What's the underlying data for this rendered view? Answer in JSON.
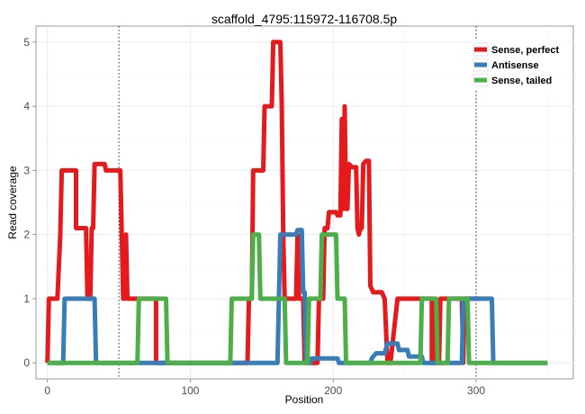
{
  "chart_data": {
    "type": "line",
    "title": "scaffold_4795:115972-116708.5p",
    "xlabel": "Position",
    "ylabel": "Read coverage",
    "xlim": [
      -8,
      368
    ],
    "ylim": [
      -0.25,
      5.25
    ],
    "xticks": [
      0,
      100,
      200,
      300
    ],
    "yticks": [
      0,
      1,
      2,
      3,
      4,
      5
    ],
    "grid": true,
    "legend_position": "top-right",
    "vlines": [
      50,
      300
    ],
    "series": [
      {
        "name": "Sense, perfect",
        "color": "#E41A1C",
        "points": [
          [
            0,
            0
          ],
          [
            1,
            1
          ],
          [
            7,
            1
          ],
          [
            9,
            2
          ],
          [
            10,
            3
          ],
          [
            20,
            3
          ],
          [
            20,
            2.1
          ],
          [
            27,
            2.1
          ],
          [
            28,
            1
          ],
          [
            30,
            1
          ],
          [
            31,
            2.1
          ],
          [
            32,
            2.1
          ],
          [
            33,
            3.1
          ],
          [
            40,
            3.1
          ],
          [
            41,
            3
          ],
          [
            51,
            3
          ],
          [
            52,
            2
          ],
          [
            53,
            1
          ],
          [
            54,
            1
          ],
          [
            55,
            2
          ],
          [
            56,
            1
          ],
          [
            68,
            1
          ],
          [
            70,
            1
          ],
          [
            76,
            1
          ],
          [
            76,
            0
          ],
          [
            140,
            0
          ],
          [
            141,
            1
          ],
          [
            143,
            1
          ],
          [
            144,
            3
          ],
          [
            151,
            3
          ],
          [
            152,
            4
          ],
          [
            157,
            4
          ],
          [
            158,
            5
          ],
          [
            163,
            5
          ],
          [
            164,
            4
          ],
          [
            165,
            2
          ],
          [
            166,
            1
          ],
          [
            174,
            1
          ],
          [
            175,
            2
          ],
          [
            176,
            1
          ],
          [
            179,
            1
          ],
          [
            180,
            0
          ],
          [
            189,
            0
          ],
          [
            190,
            1
          ],
          [
            193,
            1
          ],
          [
            194,
            2.1
          ],
          [
            196,
            2.1
          ],
          [
            197,
            2.35
          ],
          [
            202,
            2.35
          ],
          [
            203,
            2.3
          ],
          [
            205,
            2.3
          ],
          [
            206,
            3.8
          ],
          [
            207,
            2.4
          ],
          [
            208,
            4
          ],
          [
            209,
            2.4
          ],
          [
            210,
            2.4
          ],
          [
            211,
            3.1
          ],
          [
            213,
            3.05
          ],
          [
            216,
            3.05
          ],
          [
            217,
            2.1
          ],
          [
            218,
            2
          ],
          [
            219,
            2.1
          ],
          [
            220,
            2.1
          ],
          [
            221,
            3.1
          ],
          [
            223,
            3.15
          ],
          [
            225,
            3.15
          ],
          [
            226,
            1.2
          ],
          [
            228,
            1.1
          ],
          [
            230,
            1.1
          ],
          [
            232,
            1.1
          ],
          [
            234,
            1.1
          ],
          [
            236,
            1
          ],
          [
            238,
            0
          ],
          [
            240,
            0
          ],
          [
            245,
            1
          ],
          [
            258,
            1
          ],
          [
            260,
            1
          ],
          [
            262,
            1
          ],
          [
            269,
            1
          ],
          [
            269,
            0
          ],
          [
            270,
            1
          ],
          [
            271,
            0
          ],
          [
            274,
            0
          ],
          [
            275,
            1
          ],
          [
            290,
            1
          ],
          [
            291,
            0
          ],
          [
            292,
            1
          ],
          [
            300,
            1
          ],
          [
            302,
            1
          ]
        ]
      },
      {
        "name": "Antisense",
        "color": "#377EB8",
        "points": [
          [
            0,
            0
          ],
          [
            11,
            0
          ],
          [
            12,
            1
          ],
          [
            33,
            1
          ],
          [
            34,
            0
          ],
          [
            161,
            0
          ],
          [
            162,
            1
          ],
          [
            163,
            2
          ],
          [
            174,
            2
          ],
          [
            175,
            2.07
          ],
          [
            178,
            2.07
          ],
          [
            179,
            1.1
          ],
          [
            180,
            1.1
          ],
          [
            181,
            0
          ],
          [
            184,
            0
          ],
          [
            185,
            0.07
          ],
          [
            203,
            0.07
          ],
          [
            204,
            0
          ],
          [
            226,
            0
          ],
          [
            227,
            0.07
          ],
          [
            228,
            0.1
          ],
          [
            230,
            0.15
          ],
          [
            236,
            0.15
          ],
          [
            238,
            0.3
          ],
          [
            245,
            0.3
          ],
          [
            246,
            0.2
          ],
          [
            252,
            0.2
          ],
          [
            253,
            0.1
          ],
          [
            262,
            0.1
          ],
          [
            263,
            0
          ],
          [
            290,
            0
          ],
          [
            291,
            1
          ],
          [
            311,
            1
          ],
          [
            312,
            0
          ],
          [
            350,
            0
          ]
        ]
      },
      {
        "name": "Sense, tailed",
        "color": "#4DAF4A",
        "points": [
          [
            0,
            0
          ],
          [
            63,
            0
          ],
          [
            64,
            1
          ],
          [
            83,
            1
          ],
          [
            84,
            0
          ],
          [
            128,
            0
          ],
          [
            129,
            1
          ],
          [
            143,
            1
          ],
          [
            144,
            2
          ],
          [
            148,
            2
          ],
          [
            149,
            1
          ],
          [
            166,
            1
          ],
          [
            167,
            0
          ],
          [
            182,
            0
          ],
          [
            183,
            1
          ],
          [
            191,
            1
          ],
          [
            192,
            2
          ],
          [
            202,
            2
          ],
          [
            203,
            1
          ],
          [
            208,
            1
          ],
          [
            209,
            0
          ],
          [
            261,
            0
          ],
          [
            262,
            1
          ],
          [
            272,
            1
          ],
          [
            273,
            0
          ],
          [
            280,
            0
          ],
          [
            281,
            1
          ],
          [
            294,
            1
          ],
          [
            295,
            0
          ],
          [
            350,
            0
          ]
        ]
      }
    ]
  }
}
